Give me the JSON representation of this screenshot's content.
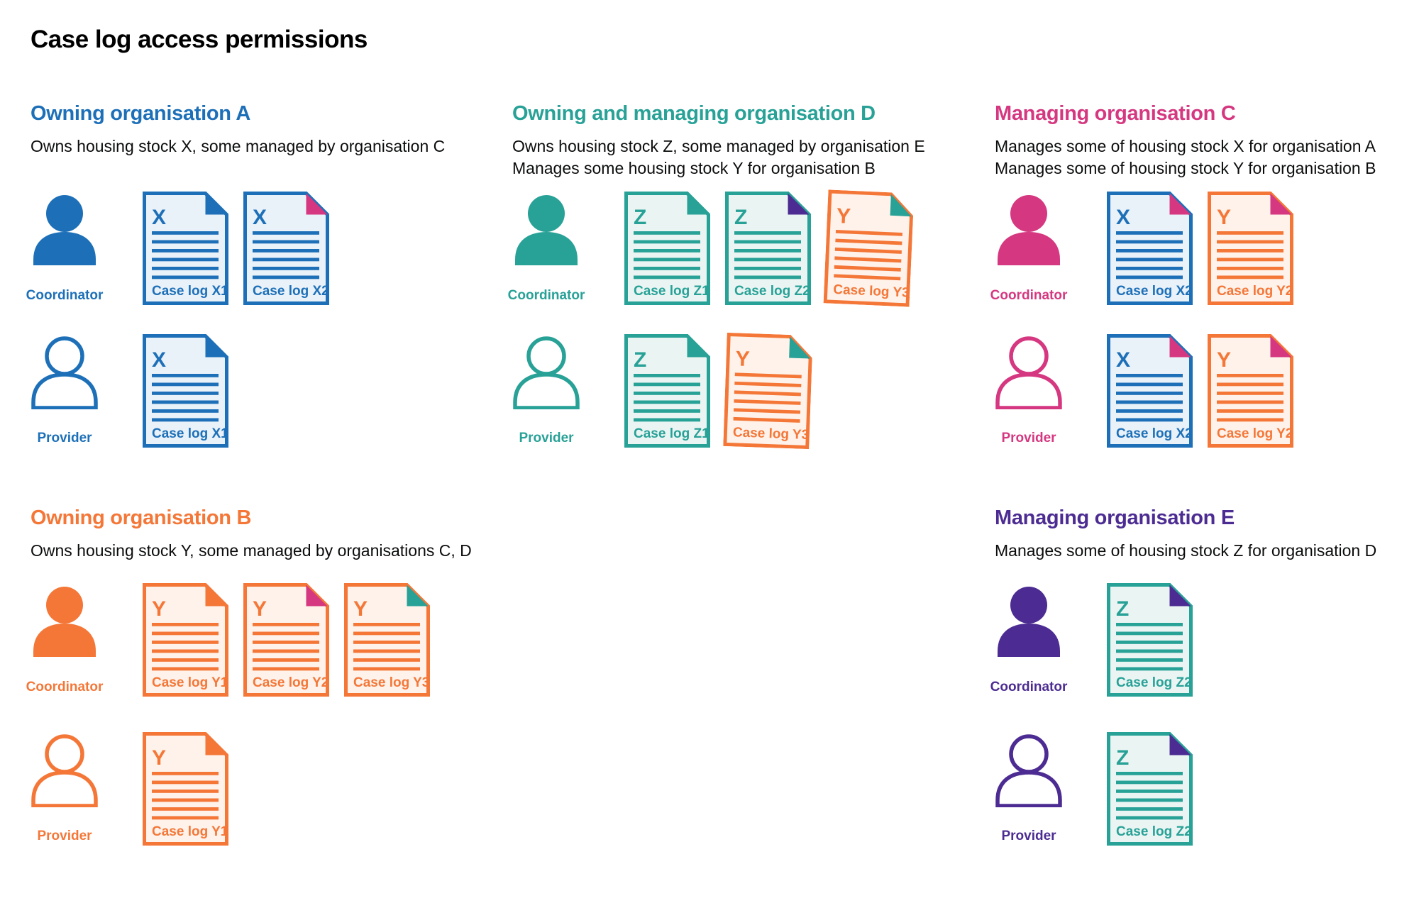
{
  "title": "Case log access permissions",
  "colors": {
    "text": "#0b0c0c",
    "blue": "#1d70b8",
    "blue_fill": "#e9f1f9",
    "teal": "#28a197",
    "teal_fill": "#eaf5f3",
    "orange": "#f47738",
    "orange_fill": "#fef2ea",
    "pink": "#d53880",
    "purple": "#4c2c92"
  },
  "organisations": [
    {
      "heading": "Owning organisation A",
      "color": "blue",
      "band": 0,
      "column": 0,
      "description": [
        "Owns housing stock X, some managed by organisation C"
      ],
      "rows": [
        {
          "role": "Coordinator",
          "person": "filled",
          "docs": [
            {
              "letter": "X",
              "label": "Case log X1",
              "scheme": "blue",
              "fold": "blue"
            },
            {
              "letter": "X",
              "label": "Case log X2",
              "scheme": "blue",
              "fold": "pink"
            }
          ]
        },
        {
          "role": "Provider",
          "person": "outline",
          "docs": [
            {
              "letter": "X",
              "label": "Case log X1",
              "scheme": "blue",
              "fold": "blue"
            }
          ]
        }
      ]
    },
    {
      "heading": "Owning and managing organisation D",
      "color": "teal",
      "band": 0,
      "column": 1,
      "description": [
        "Owns housing stock Z, some managed by organisation E",
        "Manages some housing stock Y for organisation B"
      ],
      "rows": [
        {
          "role": "Coordinator",
          "person": "filled",
          "docs": [
            {
              "letter": "Z",
              "label": "Case log Z1",
              "scheme": "teal",
              "fold": "teal"
            },
            {
              "letter": "Z",
              "label": "Case log Z2",
              "scheme": "teal",
              "fold": "purple"
            },
            {
              "letter": "Y",
              "label": "Case log Y3",
              "scheme": "orange",
              "fold": "teal",
              "tilt": 2.5
            }
          ]
        },
        {
          "role": "Provider",
          "person": "outline",
          "docs": [
            {
              "letter": "Z",
              "label": "Case log Z1",
              "scheme": "teal",
              "fold": "teal"
            },
            {
              "letter": "Y",
              "label": "Case log Y3",
              "scheme": "orange",
              "fold": "teal",
              "tilt": 2
            }
          ]
        }
      ]
    },
    {
      "heading": "Managing organisation C",
      "color": "pink",
      "band": 0,
      "column": 2,
      "description": [
        "Manages some of housing stock X for organisation A",
        "Manages some of housing stock Y for organisation B"
      ],
      "rows": [
        {
          "role": "Coordinator",
          "person": "filled",
          "docs": [
            {
              "letter": "X",
              "label": "Case log X2",
              "scheme": "blue",
              "fold": "pink"
            },
            {
              "letter": "Y",
              "label": "Case log Y2",
              "scheme": "orange",
              "fold": "pink"
            }
          ]
        },
        {
          "role": "Provider",
          "person": "outline",
          "docs": [
            {
              "letter": "X",
              "label": "Case log X2",
              "scheme": "blue",
              "fold": "pink"
            },
            {
              "letter": "Y",
              "label": "Case log Y2",
              "scheme": "orange",
              "fold": "pink"
            }
          ]
        }
      ]
    },
    {
      "heading": "Owning organisation B",
      "color": "orange",
      "band": 1,
      "column": 0,
      "description": [
        "Owns housing stock Y, some managed by organisations C, D"
      ],
      "rows": [
        {
          "role": "Coordinator",
          "person": "filled",
          "docs": [
            {
              "letter": "Y",
              "label": "Case log Y1",
              "scheme": "orange",
              "fold": "orange"
            },
            {
              "letter": "Y",
              "label": "Case log Y2",
              "scheme": "orange",
              "fold": "pink"
            },
            {
              "letter": "Y",
              "label": "Case log Y3",
              "scheme": "orange",
              "fold": "teal"
            }
          ]
        },
        {
          "role": "Provider",
          "person": "outline",
          "docs": [
            {
              "letter": "Y",
              "label": "Case log Y1",
              "scheme": "orange",
              "fold": "orange"
            }
          ]
        }
      ]
    },
    {
      "heading": "Managing organisation E",
      "color": "purple",
      "band": 1,
      "column": 2,
      "description": [
        "Manages some of housing stock Z for organisation D"
      ],
      "rows": [
        {
          "role": "Coordinator",
          "person": "filled",
          "docs": [
            {
              "letter": "Z",
              "label": "Case log Z2",
              "scheme": "teal",
              "fold": "purple"
            }
          ]
        },
        {
          "role": "Provider",
          "person": "outline",
          "docs": [
            {
              "letter": "Z",
              "label": "Case log Z2",
              "scheme": "teal",
              "fold": "purple"
            }
          ]
        }
      ]
    }
  ]
}
